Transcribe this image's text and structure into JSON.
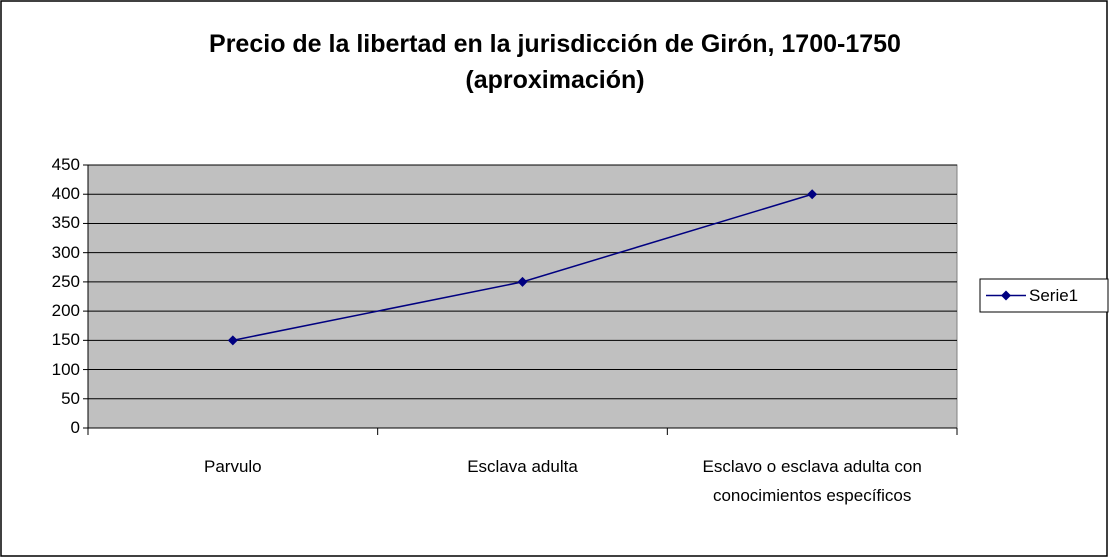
{
  "chart_data": {
    "type": "line",
    "title": "Precio de la libertad en la jurisdicción de Girón, 1700-1750 (aproximación)",
    "categories": [
      "Parvulo",
      "Esclava adulta",
      "Esclavo o esclava adulta con conocimientos específicos"
    ],
    "series": [
      {
        "name": "Serie1",
        "color": "#000080",
        "values": [
          150,
          250,
          400
        ]
      }
    ],
    "ylim": [
      0,
      450
    ],
    "yticks": [
      0,
      50,
      100,
      150,
      200,
      250,
      300,
      350,
      400,
      450
    ],
    "grid": true,
    "legend": "right"
  }
}
